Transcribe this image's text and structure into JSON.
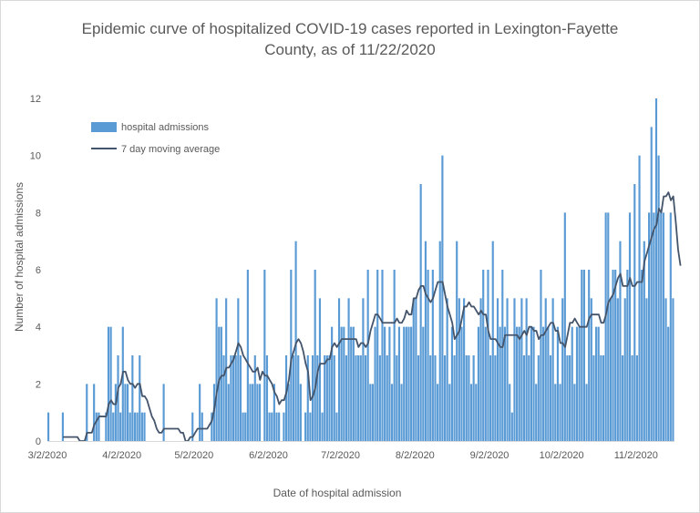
{
  "chart_data": {
    "type": "bar",
    "title": "Epidemic curve of hospitalized COVID-19 cases reported in Lexington-Fayette County, as of 11/22/2020",
    "xlabel": "Date of hospital admission",
    "ylabel": "Number of hospital admissions",
    "ylim": [
      0,
      12
    ],
    "yticks": [
      0,
      2,
      4,
      6,
      8,
      10,
      12
    ],
    "xticks": [
      "3/2/2020",
      "4/2/2020",
      "5/2/2020",
      "6/2/2020",
      "7/2/2020",
      "8/2/2020",
      "9/2/2020",
      "10/2/2020",
      "11/2/2020"
    ],
    "x_start": "3/2/2020",
    "grid": false,
    "legend_position": "top-left",
    "series": [
      {
        "name": "hospital admissions",
        "type": "bar",
        "color": "#5b9bd5",
        "values": [
          1,
          0,
          0,
          0,
          0,
          0,
          1,
          0,
          0,
          0,
          0,
          0,
          0,
          0,
          0,
          0,
          2,
          0,
          0,
          2,
          1,
          1,
          0,
          0,
          1,
          4,
          4,
          1,
          2,
          3,
          1,
          4,
          2,
          2,
          1,
          3,
          1,
          1,
          3,
          1,
          1,
          0,
          0,
          0,
          0,
          0,
          0,
          0,
          2,
          0,
          0,
          0,
          0,
          0,
          0,
          0,
          0,
          0,
          0,
          0,
          1,
          0,
          0,
          2,
          1,
          0,
          0,
          0,
          1,
          2,
          5,
          4,
          4,
          3,
          5,
          2,
          3,
          3,
          3,
          5,
          3,
          1,
          1,
          6,
          2,
          2,
          3,
          2,
          2,
          0,
          6,
          3,
          1,
          1,
          2,
          1,
          1,
          0,
          1,
          3,
          2,
          6,
          3,
          7,
          3,
          2,
          0,
          1,
          3,
          1,
          3,
          6,
          3,
          5,
          1,
          3,
          3,
          3,
          4,
          3,
          1,
          5,
          4,
          4,
          3,
          5,
          4,
          4,
          3,
          3,
          3,
          5,
          3,
          6,
          2,
          2,
          4,
          6,
          3,
          6,
          4,
          3,
          4,
          2,
          6,
          3,
          4,
          2,
          4,
          4,
          4,
          4,
          5,
          5,
          3,
          9,
          4,
          7,
          6,
          3,
          6,
          3,
          2,
          7,
          10,
          3,
          5,
          2,
          4,
          3,
          7,
          5,
          4,
          5,
          3,
          3,
          2,
          3,
          2,
          4,
          5,
          6,
          4,
          6,
          3,
          7,
          3,
          5,
          4,
          6,
          4,
          5,
          2,
          1,
          5,
          4,
          4,
          5,
          3,
          5,
          3,
          4,
          4,
          2,
          3,
          6,
          4,
          5,
          4,
          3,
          5,
          2,
          4,
          2,
          5,
          8,
          3,
          3,
          4,
          2,
          4,
          4,
          6,
          6,
          2,
          6,
          5,
          3,
          4,
          4,
          3,
          3,
          8,
          8,
          5,
          6,
          6,
          5,
          7,
          3,
          5,
          6,
          8,
          3,
          9,
          3,
          10,
          6,
          7,
          5,
          8,
          11,
          8,
          12,
          10,
          8,
          8,
          5,
          4,
          8,
          5
        ]
      },
      {
        "name": "7 day moving average",
        "type": "line",
        "color": "#44546a",
        "values": [
          null,
          null,
          null,
          null,
          null,
          null,
          0.14,
          0.14,
          0.14,
          0.14,
          0.14,
          0.14,
          0.14,
          0.0,
          0.0,
          0.0,
          0.29,
          0.29,
          0.29,
          0.57,
          0.71,
          0.86,
          0.86,
          0.86,
          0.86,
          1.29,
          1.43,
          1.29,
          1.29,
          1.86,
          2.0,
          2.43,
          2.43,
          2.14,
          2.0,
          2.0,
          1.86,
          2.0,
          2.0,
          1.57,
          1.57,
          1.43,
          1.14,
          0.86,
          0.71,
          0.43,
          0.29,
          0.29,
          0.43,
          0.43,
          0.43,
          0.43,
          0.43,
          0.43,
          0.43,
          0.29,
          0.29,
          0.0,
          0.0,
          0.14,
          0.14,
          0.29,
          0.43,
          0.43,
          0.43,
          0.43,
          0.43,
          0.57,
          0.71,
          1.14,
          1.71,
          2.14,
          2.29,
          2.29,
          2.57,
          2.57,
          2.71,
          2.86,
          3.14,
          3.43,
          3.29,
          3.0,
          2.86,
          2.71,
          2.57,
          2.43,
          2.43,
          2.57,
          2.14,
          2.43,
          2.29,
          2.29,
          2.14,
          2.0,
          1.71,
          1.57,
          1.29,
          1.43,
          1.43,
          1.71,
          2.14,
          2.86,
          3.14,
          3.43,
          3.57,
          3.43,
          3.14,
          2.71,
          2.43,
          1.43,
          1.57,
          1.86,
          2.43,
          2.71,
          2.71,
          2.71,
          2.86,
          2.86,
          3.29,
          3.43,
          3.29,
          3.43,
          3.57,
          3.57,
          3.57,
          3.57,
          3.57,
          3.57,
          3.57,
          3.29,
          3.43,
          3.43,
          3.29,
          3.43,
          3.86,
          4.14,
          4.43,
          4.43,
          4.29,
          4.14,
          4.14,
          4.14,
          4.14,
          4.14,
          4.14,
          4.29,
          4.14,
          4.14,
          4.29,
          4.57,
          4.43,
          4.43,
          5.0,
          5.0,
          5.29,
          5.43,
          5.43,
          5.14,
          5.0,
          4.86,
          5.0,
          5.29,
          5.57,
          5.57,
          5.57,
          5.14,
          4.71,
          4.43,
          4.14,
          3.57,
          3.71,
          3.86,
          4.29,
          4.71,
          4.71,
          4.86,
          4.71,
          4.71,
          4.57,
          4.43,
          4.57,
          4.43,
          4.43,
          3.86,
          3.57,
          3.57,
          3.57,
          3.43,
          3.29,
          3.29,
          3.71,
          3.71,
          3.71,
          3.71,
          3.71,
          3.71,
          3.57,
          3.71,
          3.86,
          3.71,
          4.0,
          4.0,
          3.86,
          3.86,
          3.57,
          3.71,
          3.71,
          3.86,
          4.0,
          4.14,
          4.14,
          3.86,
          3.86,
          3.43,
          3.43,
          3.29,
          3.71,
          4.14,
          4.14,
          4.29,
          4.14,
          4.0,
          4.0,
          4.0,
          4.0,
          4.29,
          4.43,
          4.43,
          4.43,
          4.43,
          4.14,
          4.14,
          4.43,
          4.86,
          5.0,
          5.14,
          5.43,
          5.71,
          5.86,
          5.43,
          5.43,
          5.43,
          5.71,
          5.43,
          5.43,
          5.57,
          5.57,
          5.57,
          6.29,
          6.57,
          6.86,
          7.14,
          7.43,
          7.57,
          8.14,
          8.0,
          8.57,
          8.57,
          8.71,
          8.43,
          8.57,
          7.71,
          6.71,
          6.14
        ]
      }
    ]
  }
}
